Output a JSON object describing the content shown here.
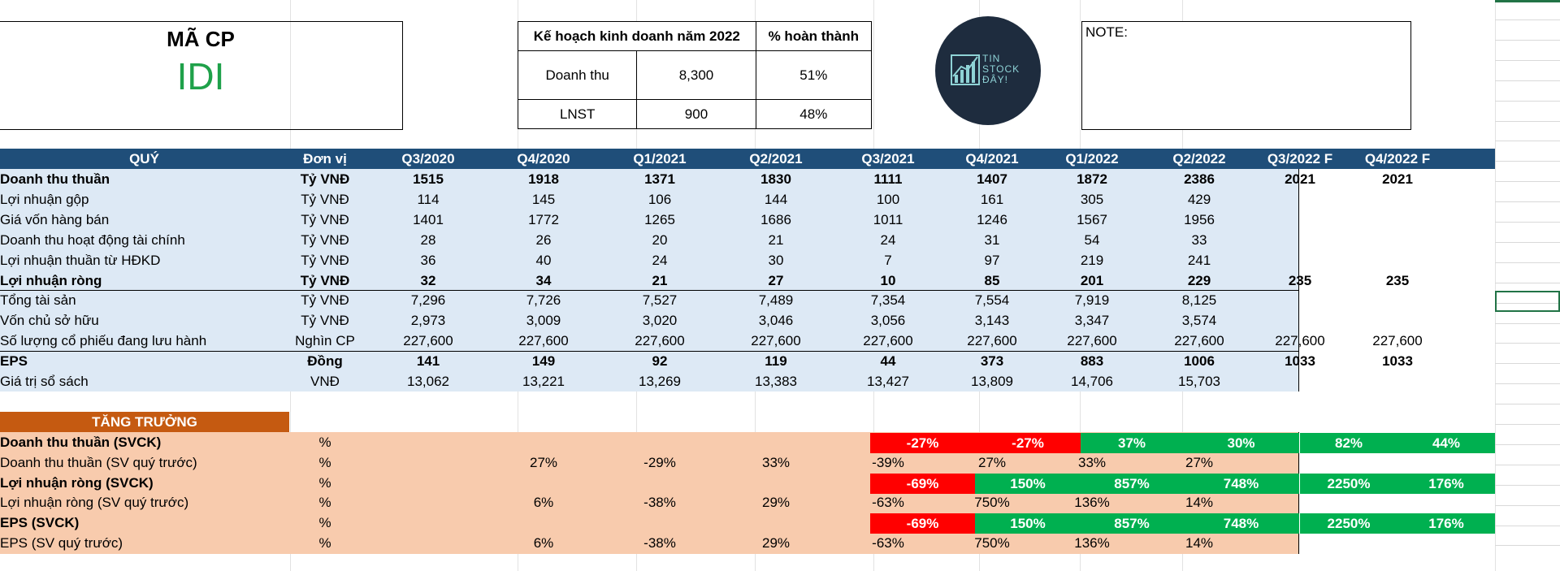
{
  "ticker": {
    "label": "MÃ CP",
    "code": "IDI"
  },
  "plan": {
    "header_plan": "Kế hoạch kinh doanh năm 2022",
    "header_pct": "% hoàn thành",
    "rows": [
      {
        "label": "Doanh thu",
        "value": "8,300",
        "pct": "51%"
      },
      {
        "label": "LNST",
        "value": "900",
        "pct": "48%"
      }
    ]
  },
  "logo": {
    "line1": "TIN",
    "line2": "STOCK",
    "line3": "ĐÂY!",
    "icon": "bar-chart-up-icon"
  },
  "note": {
    "label": "NOTE:"
  },
  "financials": {
    "col_quarter": "QUÝ",
    "col_unit": "Đơn vị",
    "quarters": [
      "Q3/2020",
      "Q4/2020",
      "Q1/2021",
      "Q2/2021",
      "Q3/2021",
      "Q4/2021",
      "Q1/2022",
      "Q2/2022"
    ],
    "forecast_quarters": [
      "Q3/2022 F",
      "Q4/2022 F"
    ],
    "rows": [
      {
        "label": "Doanh thu thuần",
        "unit": "Tỷ VNĐ",
        "bold": true,
        "values": [
          "1515",
          "1918",
          "1371",
          "1830",
          "1111",
          "1407",
          "1872",
          "2386"
        ],
        "forecast": [
          "2021",
          "2021"
        ]
      },
      {
        "label": "Lợi nhuận gộp",
        "unit": "Tỷ VNĐ",
        "bold": false,
        "values": [
          "114",
          "145",
          "106",
          "144",
          "100",
          "161",
          "305",
          "429"
        ],
        "forecast": [
          "",
          ""
        ]
      },
      {
        "label": "Giá vốn hàng bán",
        "unit": "Tỷ VNĐ",
        "bold": false,
        "values": [
          "1401",
          "1772",
          "1265",
          "1686",
          "1011",
          "1246",
          "1567",
          "1956"
        ],
        "forecast": [
          "",
          ""
        ]
      },
      {
        "label": "Doanh thu hoạt động tài chính",
        "unit": "Tỷ VNĐ",
        "bold": false,
        "values": [
          "28",
          "26",
          "20",
          "21",
          "24",
          "31",
          "54",
          "33"
        ],
        "forecast": [
          "",
          ""
        ]
      },
      {
        "label": "Lợi nhuận thuần từ HĐKD",
        "unit": "Tỷ VNĐ",
        "bold": false,
        "values": [
          "36",
          "40",
          "24",
          "30",
          "7",
          "97",
          "219",
          "241"
        ],
        "forecast": [
          "",
          ""
        ]
      },
      {
        "label": "Lợi nhuận ròng",
        "unit": "Tỷ VNĐ",
        "bold": true,
        "values": [
          "32",
          "34",
          "21",
          "27",
          "10",
          "85",
          "201",
          "229"
        ],
        "forecast": [
          "235",
          "235"
        ]
      },
      {
        "label": "Tổng tài sản",
        "unit": "Tỷ VNĐ",
        "bold": false,
        "values": [
          "7,296",
          "7,726",
          "7,527",
          "7,489",
          "7,354",
          "7,554",
          "7,919",
          "8,125"
        ],
        "forecast": [
          "",
          ""
        ]
      },
      {
        "label": "Vốn chủ sở hữu",
        "unit": "Tỷ VNĐ",
        "bold": false,
        "values": [
          "2,973",
          "3,009",
          "3,020",
          "3,046",
          "3,056",
          "3,143",
          "3,347",
          "3,574"
        ],
        "forecast": [
          "",
          ""
        ]
      },
      {
        "label": "Số lượng cổ phiếu đang lưu hành",
        "unit": "Nghìn CP",
        "bold": false,
        "values": [
          "227,600",
          "227,600",
          "227,600",
          "227,600",
          "227,600",
          "227,600",
          "227,600",
          "227,600"
        ],
        "forecast": [
          "227,600",
          "227,600"
        ]
      },
      {
        "label": "EPS",
        "unit": "Đồng",
        "bold": true,
        "values": [
          "141",
          "149",
          "92",
          "119",
          "44",
          "373",
          "883",
          "1006"
        ],
        "forecast": [
          "1033",
          "1033"
        ]
      },
      {
        "label": "Giá trị sổ sách",
        "unit": "VNĐ",
        "bold": false,
        "values": [
          "13,062",
          "13,221",
          "13,269",
          "13,383",
          "13,427",
          "13,809",
          "14,706",
          "15,703"
        ],
        "forecast": [
          "",
          ""
        ]
      }
    ]
  },
  "growth": {
    "title": "TĂNG TRƯỞNG",
    "rows": [
      {
        "label": "Doanh thu thuần (SVCK)",
        "unit": "%",
        "bold": true,
        "values": [
          "",
          "",
          "",
          "",
          "-27%",
          "-27%",
          "37%",
          "30%"
        ],
        "forecast": [
          "82%",
          "44%"
        ]
      },
      {
        "label": "Doanh thu thuần (SV quý trước)",
        "unit": "%",
        "bold": false,
        "values": [
          "",
          "27%",
          "-29%",
          "33%",
          "-39%",
          "27%",
          "33%",
          "27%"
        ],
        "forecast": [
          "",
          ""
        ]
      },
      {
        "label": "Lợi nhuận ròng (SVCK)",
        "unit": "%",
        "bold": true,
        "values": [
          "",
          "",
          "",
          "",
          "-69%",
          "150%",
          "857%",
          "748%"
        ],
        "forecast": [
          "2250%",
          "176%"
        ]
      },
      {
        "label": "Lợi nhuận ròng (SV quý trước)",
        "unit": "%",
        "bold": false,
        "values": [
          "",
          "6%",
          "-38%",
          "29%",
          "-63%",
          "750%",
          "136%",
          "14%"
        ],
        "forecast": [
          "",
          ""
        ]
      },
      {
        "label": "EPS (SVCK)",
        "unit": "%",
        "bold": true,
        "values": [
          "",
          "",
          "",
          "",
          "-69%",
          "150%",
          "857%",
          "748%"
        ],
        "forecast": [
          "2250%",
          "176%"
        ]
      },
      {
        "label": "EPS (SV quý trước)",
        "unit": "%",
        "bold": false,
        "values": [
          "",
          "6%",
          "-38%",
          "29%",
          "-63%",
          "750%",
          "136%",
          "14%"
        ],
        "forecast": [
          "",
          ""
        ]
      }
    ]
  },
  "colors": {
    "header_bg": "#1f4e79",
    "table_bg": "#dde9f5",
    "growth_title_bg": "#c55a11",
    "growth_bg": "#f8cbad",
    "red": "#ff0000",
    "green": "#00b050",
    "ticker_green": "#1fa14a"
  }
}
